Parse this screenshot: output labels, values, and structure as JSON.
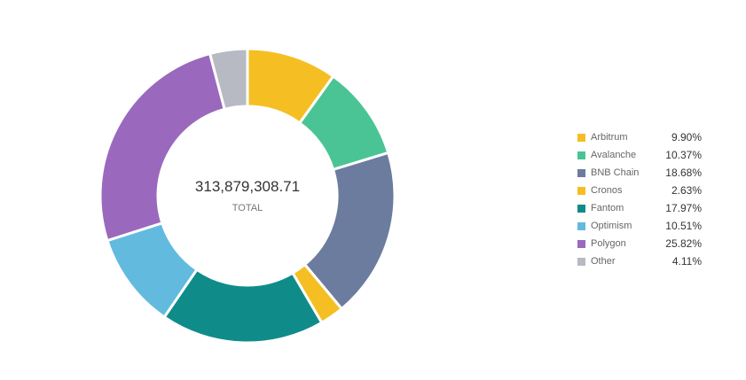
{
  "chart_data": {
    "type": "pie",
    "variant": "donut",
    "title": "",
    "center_value": "313,879,308.71",
    "center_label": "TOTAL",
    "legend_position": "right",
    "categories": [
      "Arbitrum",
      "Avalanche",
      "BNB Chain",
      "Cronos",
      "Fantom",
      "Optimism",
      "Polygon",
      "Other"
    ],
    "values": [
      9.9,
      10.37,
      18.68,
      2.63,
      17.97,
      10.51,
      25.82,
      4.11
    ],
    "value_labels": [
      "9.90%",
      "10.37%",
      "18.68%",
      "2.63%",
      "17.97%",
      "10.51%",
      "25.82%",
      "4.11%"
    ],
    "colors": [
      "#F5BF23",
      "#4BC495",
      "#6B7C9E",
      "#F5BF23",
      "#0F8C8A",
      "#62BADF",
      "#9A69BE",
      "#B7BAC3"
    ]
  }
}
